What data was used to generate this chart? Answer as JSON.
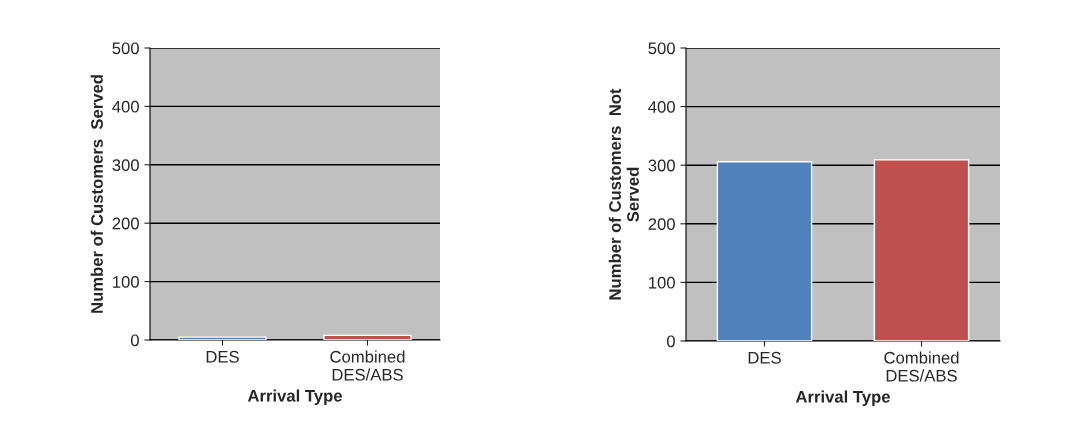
{
  "chart_data": [
    {
      "type": "bar",
      "xlabel": "Arrival Type",
      "ylabel": "Number of Customers  Served",
      "categories": [
        "DES",
        "Combined\nDES/ABS"
      ],
      "values": [
        5,
        8
      ],
      "colors": [
        "#4f81bd",
        "#c0504d"
      ],
      "ylim": [
        0,
        500
      ],
      "yticks": [
        0,
        100,
        200,
        300,
        400,
        500
      ],
      "grid": "y"
    },
    {
      "type": "bar",
      "xlabel": "Arrival Type",
      "ylabel": "Number of Customers  Not\nServed",
      "categories": [
        "DES",
        "Combined\nDES/ABS"
      ],
      "values": [
        306,
        309
      ],
      "colors": [
        "#4f81bd",
        "#c0504d"
      ],
      "ylim": [
        0,
        500
      ],
      "yticks": [
        0,
        100,
        200,
        300,
        400,
        500
      ],
      "grid": "y"
    }
  ]
}
